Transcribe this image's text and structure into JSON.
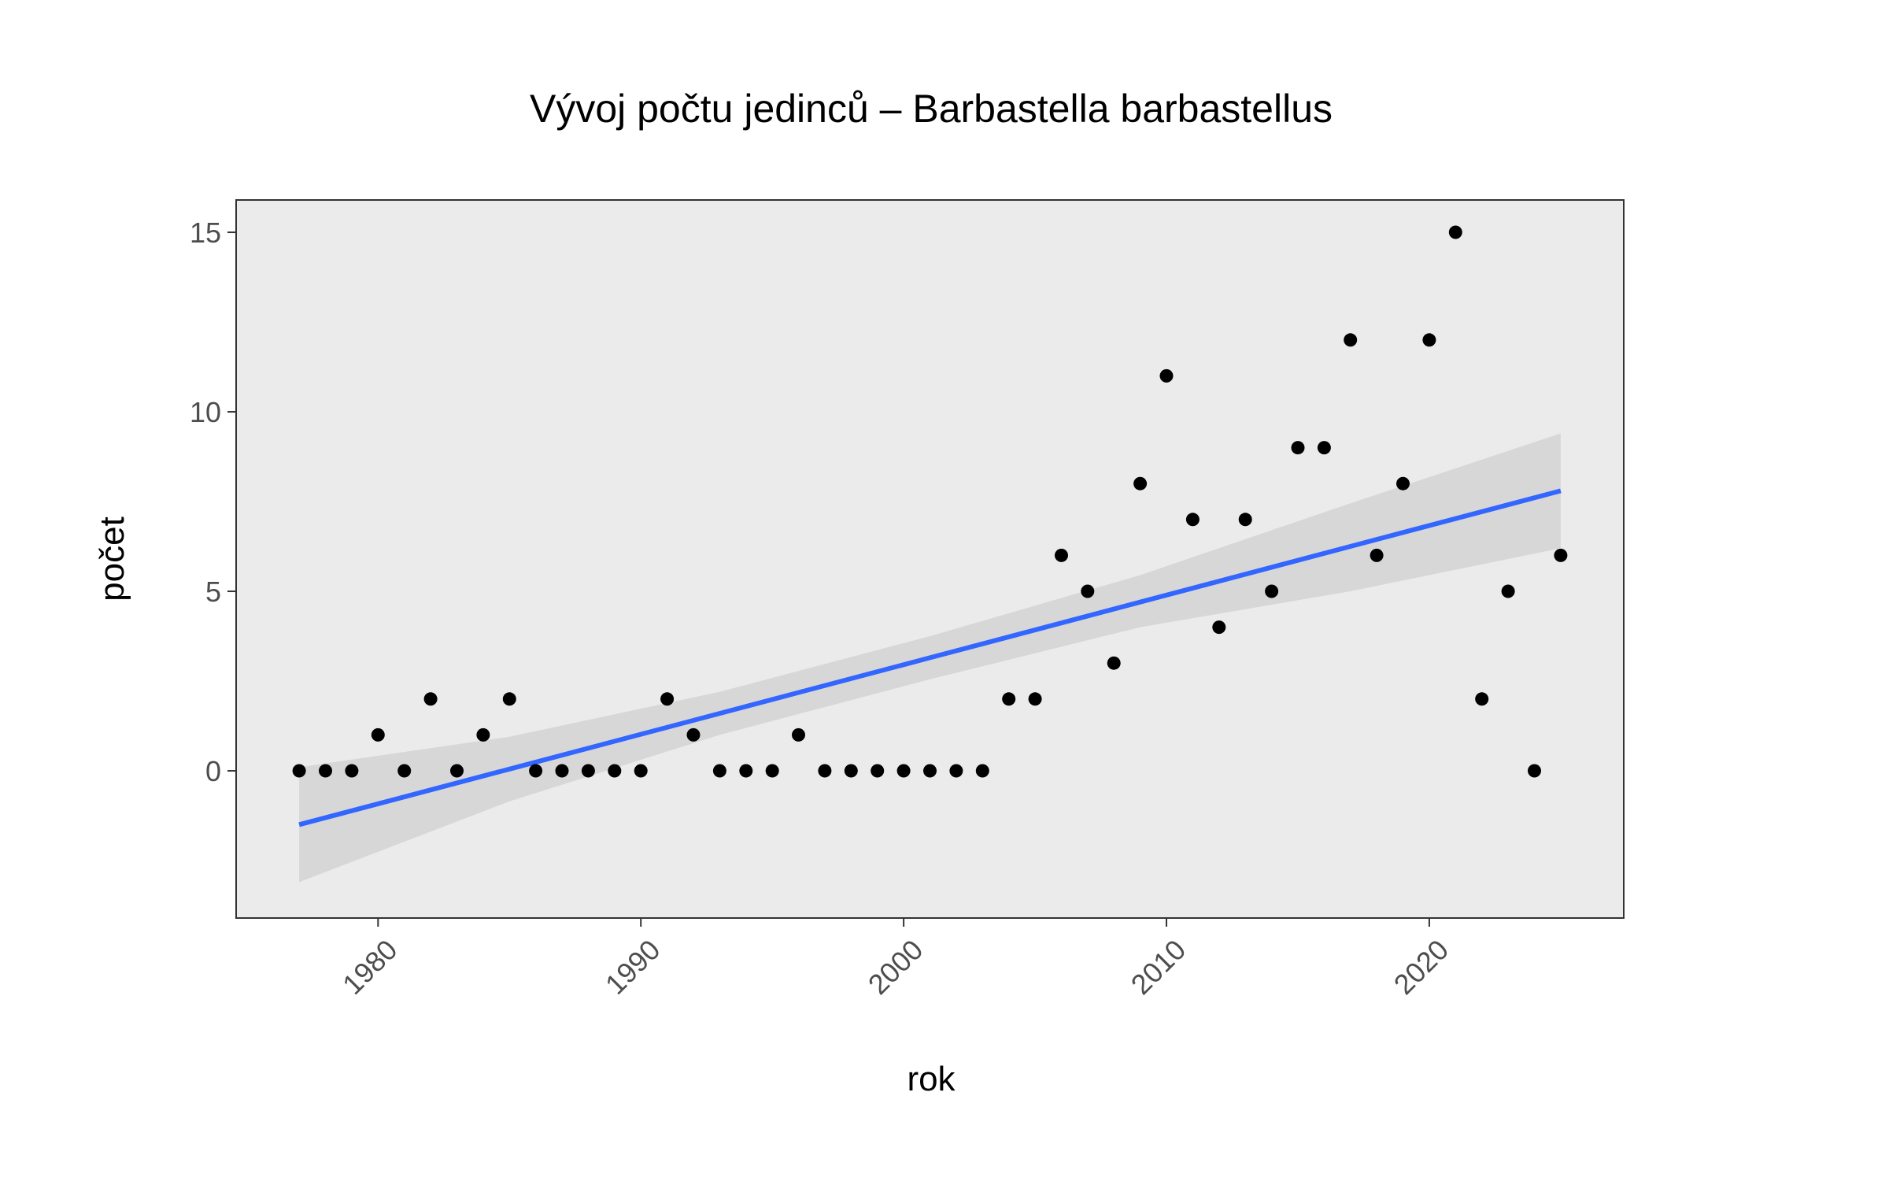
{
  "chart_data": {
    "type": "scatter",
    "title": "Vývoj počtu jedinců – Barbastella barbastellus",
    "xlabel": "rok",
    "ylabel": "počet",
    "xlim": [
      1974.6,
      2027.4
    ],
    "ylim": [
      -4.1,
      15.9
    ],
    "x_ticks": [
      1980,
      1990,
      2000,
      2010,
      2020
    ],
    "y_ticks": [
      0,
      5,
      10,
      15
    ],
    "grid": false,
    "legend": "none",
    "colors": {
      "points": "#000000",
      "trend_line": "#3366ff",
      "confidence_band": "#d3d3d3",
      "panel_background": "#ebebeb",
      "panel_border": "#333333"
    },
    "series": [
      {
        "values": [
          [
            1977,
            0
          ],
          [
            1978,
            0
          ],
          [
            1979,
            0
          ],
          [
            1980,
            1
          ],
          [
            1981,
            0
          ],
          [
            1982,
            2
          ],
          [
            1983,
            0
          ],
          [
            1984,
            1
          ],
          [
            1985,
            2
          ],
          [
            1986,
            0
          ],
          [
            1987,
            0
          ],
          [
            1988,
            0
          ],
          [
            1989,
            0
          ],
          [
            1990,
            0
          ],
          [
            1991,
            2
          ],
          [
            1992,
            1
          ],
          [
            1993,
            0
          ],
          [
            1994,
            0
          ],
          [
            1995,
            0
          ],
          [
            1996,
            1
          ],
          [
            1997,
            0
          ],
          [
            1998,
            0
          ],
          [
            1999,
            0
          ],
          [
            2000,
            0
          ],
          [
            2001,
            0
          ],
          [
            2002,
            0
          ],
          [
            2003,
            0
          ],
          [
            2004,
            2
          ],
          [
            2005,
            2
          ],
          [
            2006,
            6
          ],
          [
            2007,
            5
          ],
          [
            2008,
            3
          ],
          [
            2009,
            8
          ],
          [
            2010,
            11
          ],
          [
            2011,
            7
          ],
          [
            2012,
            4
          ],
          [
            2013,
            7
          ],
          [
            2014,
            5
          ],
          [
            2015,
            9
          ],
          [
            2016,
            9
          ],
          [
            2017,
            12
          ],
          [
            2018,
            6
          ],
          [
            2019,
            8
          ],
          [
            2020,
            12
          ],
          [
            2021,
            15
          ],
          [
            2022,
            2
          ],
          [
            2023,
            5
          ],
          [
            2024,
            0
          ],
          [
            2025,
            6
          ]
        ]
      }
    ],
    "trend": {
      "method": "lm",
      "x": [
        1977,
        1985,
        1993,
        2001,
        2009,
        2017,
        2025
      ],
      "fit": [
        -1.5,
        0.05,
        1.6,
        3.15,
        4.7,
        6.25,
        7.8
      ],
      "lower": [
        -3.1,
        -0.85,
        1.0,
        2.55,
        4.0,
        5.0,
        6.2
      ],
      "upper": [
        0.1,
        0.95,
        2.2,
        3.75,
        5.45,
        7.45,
        9.4
      ]
    }
  }
}
